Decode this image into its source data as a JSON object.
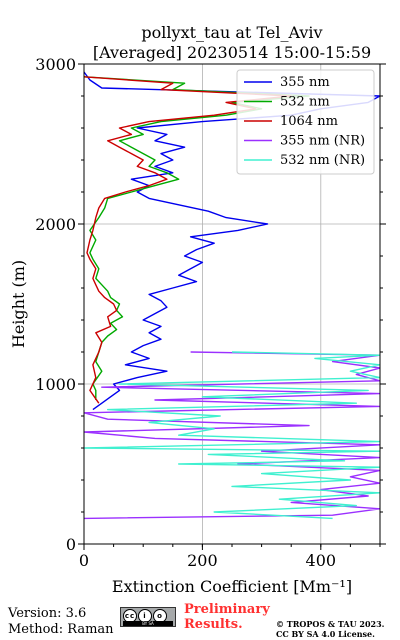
{
  "chart_data": {
    "type": "line",
    "title": "pollyxt_tau at Tel_Aviv",
    "subtitle": "[Averaged] 20230514 15:00-15:59",
    "xlabel": "Extinction Coefficient [Mm⁻¹]",
    "ylabel": "Height (m)",
    "xlim": [
      0,
      500
    ],
    "ylim": [
      0,
      3000
    ],
    "xticks": [
      0,
      200,
      400
    ],
    "yticks": [
      0,
      1000,
      2000,
      3000
    ],
    "grid": true,
    "legend_position": "upper-right",
    "series": [
      {
        "name": "355 nm",
        "color": "#0000ee",
        "points": [
          [
            15,
            840
          ],
          [
            30,
            880
          ],
          [
            45,
            920
          ],
          [
            60,
            960
          ],
          [
            50,
            1000
          ],
          [
            90,
            1040
          ],
          [
            140,
            1080
          ],
          [
            70,
            1120
          ],
          [
            110,
            1160
          ],
          [
            80,
            1200
          ],
          [
            100,
            1240
          ],
          [
            130,
            1280
          ],
          [
            110,
            1320
          ],
          [
            130,
            1360
          ],
          [
            100,
            1400
          ],
          [
            120,
            1440
          ],
          [
            140,
            1480
          ],
          [
            130,
            1520
          ],
          [
            110,
            1560
          ],
          [
            150,
            1600
          ],
          [
            190,
            1640
          ],
          [
            160,
            1680
          ],
          [
            180,
            1720
          ],
          [
            200,
            1760
          ],
          [
            170,
            1800
          ],
          [
            190,
            1840
          ],
          [
            220,
            1880
          ],
          [
            180,
            1920
          ],
          [
            260,
            1960
          ],
          [
            310,
            2000
          ],
          [
            240,
            2040
          ],
          [
            210,
            2080
          ],
          [
            160,
            2120
          ],
          [
            110,
            2160
          ],
          [
            90,
            2200
          ],
          [
            110,
            2240
          ],
          [
            80,
            2280
          ],
          [
            150,
            2320
          ],
          [
            120,
            2360
          ],
          [
            150,
            2400
          ],
          [
            130,
            2440
          ],
          [
            170,
            2480
          ],
          [
            120,
            2520
          ],
          [
            140,
            2560
          ],
          [
            90,
            2600
          ],
          [
            200,
            2640
          ],
          [
            350,
            2680
          ],
          [
            400,
            2720
          ],
          [
            480,
            2760
          ],
          [
            500,
            2800
          ],
          [
            30,
            2850
          ],
          [
            10,
            2900
          ],
          [
            0,
            2950
          ]
        ]
      },
      {
        "name": "532 nm",
        "color": "#00aa00",
        "points": [
          [
            20,
            900
          ],
          [
            20,
            960
          ],
          [
            15,
            1000
          ],
          [
            30,
            1080
          ],
          [
            20,
            1140
          ],
          [
            25,
            1200
          ],
          [
            30,
            1260
          ],
          [
            40,
            1300
          ],
          [
            55,
            1340
          ],
          [
            45,
            1380
          ],
          [
            65,
            1420
          ],
          [
            55,
            1460
          ],
          [
            60,
            1500
          ],
          [
            45,
            1540
          ],
          [
            40,
            1580
          ],
          [
            30,
            1620
          ],
          [
            20,
            1660
          ],
          [
            25,
            1720
          ],
          [
            15,
            1780
          ],
          [
            10,
            1820
          ],
          [
            20,
            1900
          ],
          [
            10,
            1960
          ],
          [
            25,
            2040
          ],
          [
            35,
            2100
          ],
          [
            40,
            2160
          ],
          [
            80,
            2200
          ],
          [
            120,
            2240
          ],
          [
            160,
            2280
          ],
          [
            140,
            2320
          ],
          [
            110,
            2360
          ],
          [
            120,
            2400
          ],
          [
            100,
            2440
          ],
          [
            80,
            2480
          ],
          [
            60,
            2520
          ],
          [
            100,
            2560
          ],
          [
            80,
            2600
          ],
          [
            130,
            2640
          ],
          [
            240,
            2680
          ],
          [
            300,
            2720
          ],
          [
            250,
            2760
          ],
          [
            380,
            2800
          ],
          [
            150,
            2840
          ],
          [
            170,
            2880
          ],
          [
            0,
            2920
          ]
        ]
      },
      {
        "name": "1064 nm",
        "color": "#cc0000",
        "points": [
          [
            25,
            880
          ],
          [
            10,
            960
          ],
          [
            20,
            1040
          ],
          [
            15,
            1120
          ],
          [
            25,
            1200
          ],
          [
            30,
            1260
          ],
          [
            20,
            1320
          ],
          [
            45,
            1360
          ],
          [
            40,
            1420
          ],
          [
            55,
            1460
          ],
          [
            50,
            1500
          ],
          [
            35,
            1540
          ],
          [
            25,
            1580
          ],
          [
            20,
            1620
          ],
          [
            15,
            1660
          ],
          [
            20,
            1720
          ],
          [
            10,
            1780
          ],
          [
            5,
            1820
          ],
          [
            10,
            1900
          ],
          [
            15,
            1960
          ],
          [
            20,
            2040
          ],
          [
            25,
            2100
          ],
          [
            35,
            2160
          ],
          [
            70,
            2200
          ],
          [
            110,
            2240
          ],
          [
            140,
            2280
          ],
          [
            120,
            2320
          ],
          [
            90,
            2360
          ],
          [
            100,
            2400
          ],
          [
            80,
            2440
          ],
          [
            60,
            2480
          ],
          [
            40,
            2520
          ],
          [
            80,
            2560
          ],
          [
            60,
            2600
          ],
          [
            110,
            2640
          ],
          [
            220,
            2680
          ],
          [
            290,
            2720
          ],
          [
            240,
            2760
          ],
          [
            350,
            2800
          ],
          [
            130,
            2840
          ],
          [
            150,
            2880
          ],
          [
            0,
            2920
          ]
        ]
      },
      {
        "name": "355 nm (NR)",
        "color": "#9b30ff",
        "points": [
          [
            180,
            1200
          ],
          [
            500,
            1180
          ],
          [
            420,
            1140
          ],
          [
            500,
            1100
          ],
          [
            460,
            1060
          ],
          [
            500,
            1020
          ],
          [
            30,
            980
          ],
          [
            500,
            940
          ],
          [
            120,
            900
          ],
          [
            500,
            860
          ],
          [
            0,
            820
          ],
          [
            40,
            780
          ],
          [
            380,
            740
          ],
          [
            0,
            700
          ],
          [
            120,
            660
          ],
          [
            500,
            620
          ],
          [
            300,
            580
          ],
          [
            500,
            540
          ],
          [
            260,
            500
          ],
          [
            500,
            460
          ],
          [
            450,
            420
          ],
          [
            500,
            380
          ],
          [
            400,
            340
          ],
          [
            480,
            300
          ],
          [
            350,
            260
          ],
          [
            500,
            220
          ],
          [
            420,
            180
          ],
          [
            0,
            160
          ]
        ]
      },
      {
        "name": "532 nm (NR)",
        "color": "#40f0d0",
        "points": [
          [
            250,
            1200
          ],
          [
            500,
            1180
          ],
          [
            390,
            1160
          ],
          [
            500,
            1120
          ],
          [
            450,
            1080
          ],
          [
            500,
            1040
          ],
          [
            60,
            1000
          ],
          [
            480,
            960
          ],
          [
            200,
            920
          ],
          [
            460,
            880
          ],
          [
            40,
            840
          ],
          [
            230,
            800
          ],
          [
            110,
            760
          ],
          [
            220,
            720
          ],
          [
            160,
            680
          ],
          [
            500,
            640
          ],
          [
            0,
            600
          ],
          [
            500,
            580
          ],
          [
            210,
            560
          ],
          [
            440,
            520
          ],
          [
            160,
            500
          ],
          [
            500,
            480
          ],
          [
            300,
            440
          ],
          [
            450,
            400
          ],
          [
            250,
            360
          ],
          [
            500,
            320
          ],
          [
            330,
            280
          ],
          [
            460,
            240
          ],
          [
            220,
            200
          ],
          [
            420,
            160
          ]
        ]
      }
    ]
  },
  "footer": {
    "version_line": "Version: 3.6",
    "method_line": "Method: Raman",
    "cc_text": "BY SA",
    "preliminary_line1": "Preliminary",
    "preliminary_line2": "Results.",
    "copyright_line1": "© TROPOS & TAU 2023.",
    "copyright_line2": "CC BY SA 4.0 License."
  }
}
